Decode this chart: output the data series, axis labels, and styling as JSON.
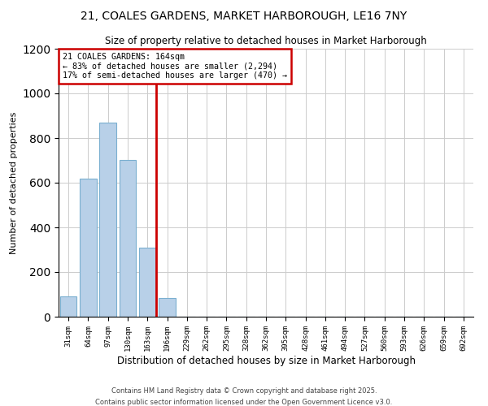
{
  "title": "21, COALES GARDENS, MARKET HARBOROUGH, LE16 7NY",
  "subtitle": "Size of property relative to detached houses in Market Harborough",
  "xlabel": "Distribution of detached houses by size in Market Harborough",
  "ylabel": "Number of detached properties",
  "footnote1": "Contains HM Land Registry data © Crown copyright and database right 2025.",
  "footnote2": "Contains public sector information licensed under the Open Government Licence v3.0.",
  "bar_labels": [
    "31sqm",
    "64sqm",
    "97sqm",
    "130sqm",
    "163sqm",
    "196sqm",
    "229sqm",
    "262sqm",
    "295sqm",
    "328sqm",
    "362sqm",
    "395sqm",
    "428sqm",
    "461sqm",
    "494sqm",
    "527sqm",
    "560sqm",
    "593sqm",
    "626sqm",
    "659sqm",
    "692sqm"
  ],
  "bar_values": [
    90,
    620,
    870,
    700,
    310,
    85,
    0,
    0,
    0,
    0,
    0,
    0,
    0,
    0,
    0,
    0,
    0,
    0,
    0,
    0,
    0
  ],
  "bar_color": "#b8d0e8",
  "bar_edge_color": "#7aafd0",
  "property_line_color": "#cc0000",
  "annotation_box_text": "21 COALES GARDENS: 164sqm\n← 83% of detached houses are smaller (2,294)\n17% of semi-detached houses are larger (470) →",
  "annotation_box_color": "#cc0000",
  "annotation_text_color": "#000000",
  "ylim": [
    0,
    1200
  ],
  "yticks": [
    0,
    200,
    400,
    600,
    800,
    1000,
    1200
  ],
  "background_color": "#ffffff",
  "grid_color": "#cccccc"
}
